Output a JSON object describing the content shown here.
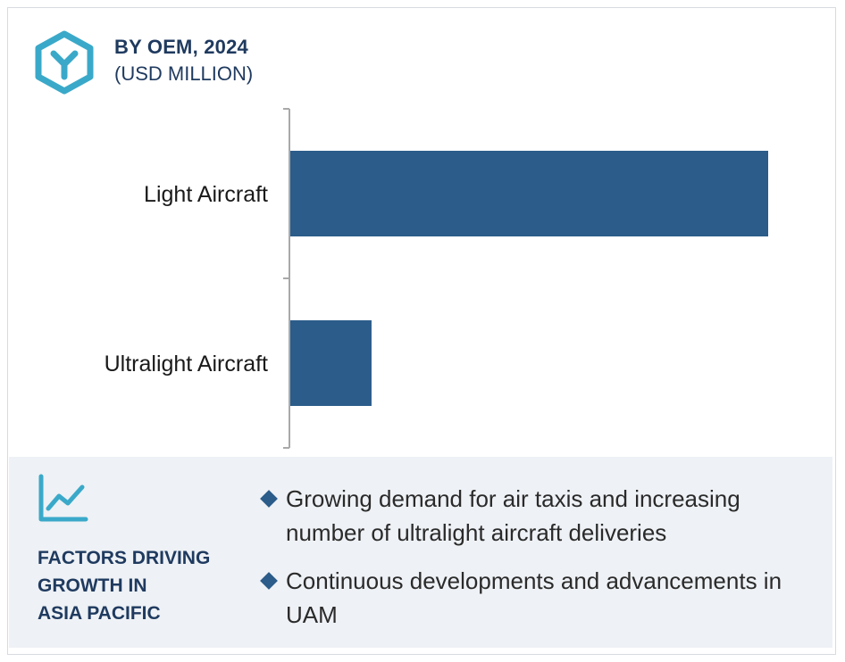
{
  "header": {
    "title": "BY OEM, 2024",
    "subtitle": "(USD MILLION)"
  },
  "chart_data": {
    "type": "bar",
    "orientation": "horizontal",
    "categories": [
      "Light Aircraft",
      "Ultralight Aircraft"
    ],
    "values": [
      100,
      17
    ],
    "bar_color": "#2b5c8a",
    "xlim": [
      0,
      100
    ],
    "grid": false,
    "legend": "none"
  },
  "factors": {
    "title_lines": [
      "FACTORS DRIVING",
      "GROWTH IN",
      "ASIA PACIFIC"
    ],
    "bullets": [
      "Growing demand for air taxis and increasing number of ultralight aircraft deliveries",
      "Continuous developments and advancements in UAM"
    ]
  },
  "colors": {
    "accent": "#2b5c8a",
    "icon": "#3aa9c9",
    "title": "#1f3a5f",
    "panel_bg": "#eef1f5"
  },
  "icons": {
    "header": "hexagon-y-icon",
    "factors": "line-chart-icon"
  }
}
